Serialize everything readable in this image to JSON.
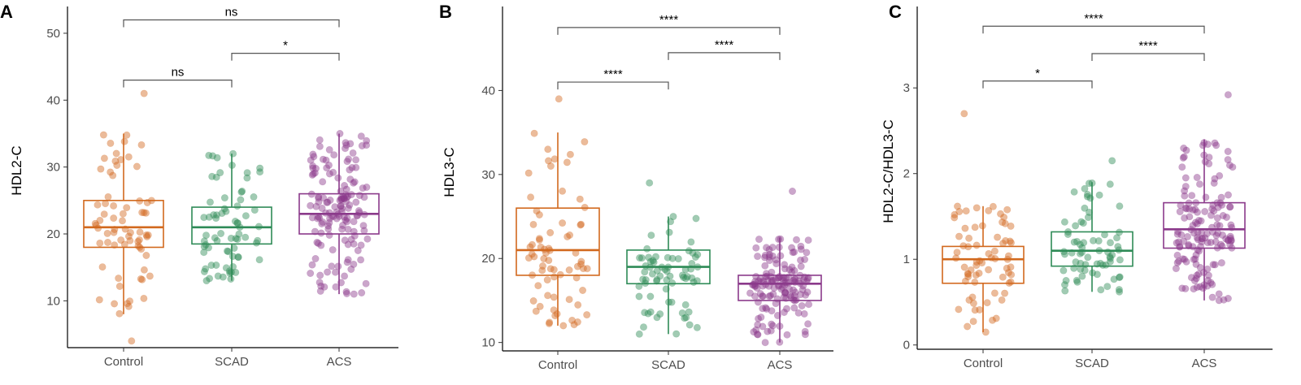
{
  "figure_colors": {
    "Control": "#d2691e",
    "SCAD": "#2e8b57",
    "ACS": "#8b3a8b"
  },
  "chart_data": [
    {
      "type": "box",
      "panel": "A",
      "ylabel": "HDL2-C",
      "categories": [
        "Control",
        "SCAD",
        "ACS"
      ],
      "ylim": [
        3,
        54
      ],
      "yticks": [
        10,
        20,
        30,
        40,
        50
      ],
      "boxes": [
        {
          "name": "Control",
          "q1": 18,
          "median": 21,
          "q3": 25,
          "whisker_low": 8,
          "whisker_high": 35,
          "min": 4,
          "max": 41,
          "n": 70
        },
        {
          "name": "SCAD",
          "q1": 18.5,
          "median": 21,
          "q3": 24,
          "whisker_low": 13,
          "whisker_high": 32,
          "min": 13,
          "max": 32,
          "n": 70
        },
        {
          "name": "ACS",
          "q1": 20,
          "median": 23,
          "q3": 26,
          "whisker_low": 11,
          "whisker_high": 35,
          "min": 11,
          "max": 35,
          "n": 150
        }
      ],
      "comparisons": [
        {
          "groups": [
            "Control",
            "SCAD"
          ],
          "label": "ns",
          "y": 43
        },
        {
          "groups": [
            "SCAD",
            "ACS"
          ],
          "label": "*",
          "y": 47
        },
        {
          "groups": [
            "Control",
            "ACS"
          ],
          "label": "ns",
          "y": 52
        }
      ]
    },
    {
      "type": "box",
      "panel": "B",
      "ylabel": "HDL3-C",
      "categories": [
        "Control",
        "SCAD",
        "ACS"
      ],
      "ylim": [
        9,
        50
      ],
      "yticks": [
        10,
        20,
        30,
        40
      ],
      "boxes": [
        {
          "name": "Control",
          "q1": 18,
          "median": 21,
          "q3": 26,
          "whisker_low": 12,
          "whisker_high": 35,
          "min": 12,
          "max": 39,
          "n": 70
        },
        {
          "name": "SCAD",
          "q1": 17,
          "median": 19,
          "q3": 21,
          "whisker_low": 11,
          "whisker_high": 25,
          "min": 11,
          "max": 29,
          "n": 70
        },
        {
          "name": "ACS",
          "q1": 15,
          "median": 17,
          "q3": 18,
          "whisker_low": 10,
          "whisker_high": 22.5,
          "min": 10,
          "max": 28,
          "n": 150
        }
      ],
      "comparisons": [
        {
          "groups": [
            "Control",
            "SCAD"
          ],
          "label": "****",
          "y": 41
        },
        {
          "groups": [
            "SCAD",
            "ACS"
          ],
          "label": "****",
          "y": 44.5
        },
        {
          "groups": [
            "Control",
            "ACS"
          ],
          "label": "****",
          "y": 47.5
        }
      ]
    },
    {
      "type": "box",
      "panel": "C",
      "ylabel": "HDL2-C/HDL3-C",
      "categories": [
        "Control",
        "SCAD",
        "ACS"
      ],
      "ylim": [
        -0.05,
        3.95
      ],
      "yticks": [
        0,
        1,
        2,
        3
      ],
      "boxes": [
        {
          "name": "Control",
          "q1": 0.72,
          "median": 1.0,
          "q3": 1.15,
          "whisker_low": 0.15,
          "whisker_high": 1.62,
          "min": 0.15,
          "max": 2.7,
          "n": 70
        },
        {
          "name": "SCAD",
          "q1": 0.92,
          "median": 1.1,
          "q3": 1.32,
          "whisker_low": 0.62,
          "whisker_high": 1.9,
          "min": 0.62,
          "max": 2.15,
          "n": 70
        },
        {
          "name": "ACS",
          "q1": 1.13,
          "median": 1.35,
          "q3": 1.66,
          "whisker_low": 0.52,
          "whisker_high": 2.4,
          "min": 0.52,
          "max": 2.92,
          "n": 150
        }
      ],
      "comparisons": [
        {
          "groups": [
            "Control",
            "SCAD"
          ],
          "label": "*",
          "y": 3.08
        },
        {
          "groups": [
            "SCAD",
            "ACS"
          ],
          "label": "****",
          "y": 3.4
        },
        {
          "groups": [
            "Control",
            "ACS"
          ],
          "label": "****",
          "y": 3.72
        }
      ]
    }
  ]
}
